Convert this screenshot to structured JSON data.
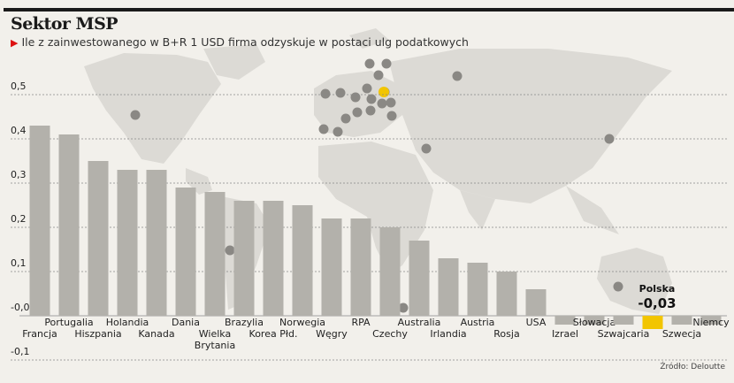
{
  "header": {
    "title": "Sektor MSP",
    "subtitle": "Ile z zainwestowanego w B+R 1 USD firma odzyskuje w postaci ulg podatkowych"
  },
  "source": "Źródło: Deloutte",
  "colors": {
    "bar": "#b3b1ab",
    "highlight": "#f2c500",
    "map": "#dcdad5",
    "dot": "#8a8884",
    "background": "#f2f0eb"
  },
  "chart_data": {
    "type": "bar",
    "title": "Sektor MSP",
    "subtitle": "Ile z zainwestowanego w B+R 1 USD firma odzyskuje w postaci ulg podatkowych",
    "categories": [
      "Francja",
      "Portugalia",
      "Hiszpania",
      "Holandia",
      "Kanada",
      "Dania",
      "Wielka Brytania",
      "Brazylia",
      "Korea Płd.",
      "Norwegia",
      "Węgry",
      "RPA",
      "Czechy",
      "Australia",
      "Irlandia",
      "Austria",
      "Rosja",
      "USA",
      "Izrael",
      "Słowacja",
      "Szwajcaria",
      "Polska",
      "Szwecja",
      "Niemcy"
    ],
    "values": [
      0.43,
      0.41,
      0.35,
      0.33,
      0.33,
      0.29,
      0.28,
      0.26,
      0.26,
      0.25,
      0.22,
      0.22,
      0.2,
      0.17,
      0.13,
      0.12,
      0.1,
      0.06,
      -0.02,
      -0.02,
      -0.02,
      -0.03,
      -0.02,
      -0.02
    ],
    "highlight": "Polska",
    "highlight_label": "Polska",
    "highlight_value_label": "-0,03",
    "yticks": [
      -0.1,
      0.0,
      0.1,
      0.2,
      0.3,
      0.4,
      0.5
    ],
    "ytick_labels": [
      "-0,1",
      "-0,0",
      "0,1",
      "0,2",
      "0,3",
      "0,4",
      "0,5"
    ],
    "ylim": [
      -0.1,
      0.5
    ],
    "xlabel": "",
    "ylabel": "",
    "grid": true
  }
}
